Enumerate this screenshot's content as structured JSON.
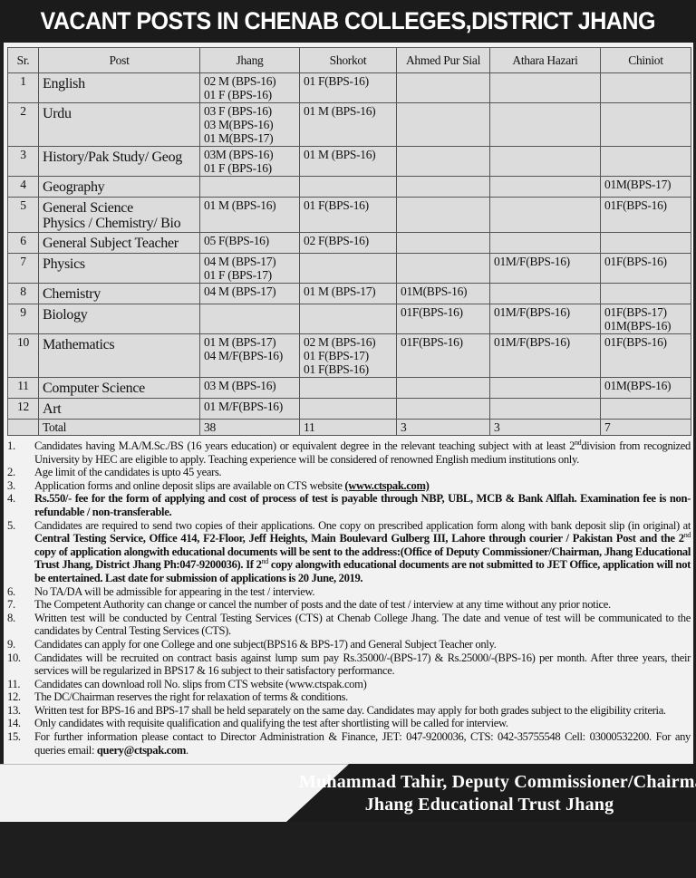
{
  "title": "VACANT POSTS IN CHENAB COLLEGES,DISTRICT JHANG",
  "table": {
    "headers": [
      "Sr.",
      "Post",
      "Jhang",
      "Shorkot",
      "Ahmed Pur Sial",
      "Athara Hazari",
      "Chiniot"
    ],
    "rows": [
      {
        "sr": "1",
        "post": "English",
        "jhang": "02 M (BPS-16)\n01 F (BPS-16)",
        "shorkot": "01 F(BPS-16)",
        "ahmed": "",
        "athara": "",
        "chiniot": ""
      },
      {
        "sr": "2",
        "post": "Urdu",
        "jhang": "03 F (BPS-16)\n03 M(BPS-16)\n01 M(BPS-17)",
        "shorkot": "01 M (BPS-16)",
        "ahmed": "",
        "athara": "",
        "chiniot": ""
      },
      {
        "sr": "3",
        "post": "History/Pak Study/ Geog",
        "jhang": "03M (BPS-16)\n01 F (BPS-16)",
        "shorkot": "01 M (BPS-16)",
        "ahmed": "",
        "athara": "",
        "chiniot": ""
      },
      {
        "sr": "4",
        "post": "Geography",
        "jhang": "",
        "shorkot": "",
        "ahmed": "",
        "athara": "",
        "chiniot": "01M(BPS-17)"
      },
      {
        "sr": "5",
        "post": "General Science\nPhysics / Chemistry/ Bio",
        "jhang": "01 M (BPS-16)",
        "shorkot": "01 F(BPS-16)",
        "ahmed": "",
        "athara": "",
        "chiniot": "01F(BPS-16)"
      },
      {
        "sr": "6",
        "post": "General Subject Teacher",
        "jhang": "05 F(BPS-16)",
        "shorkot": "02  F(BPS-16)",
        "ahmed": "",
        "athara": "",
        "chiniot": ""
      },
      {
        "sr": "7",
        "post": "Physics",
        "jhang": "04 M (BPS-17)\n01 F (BPS-17)",
        "shorkot": "",
        "ahmed": "",
        "athara": "01M/F(BPS-16)",
        "chiniot": "01F(BPS-16)"
      },
      {
        "sr": "8",
        "post": "Chemistry",
        "jhang": "04 M (BPS-17)",
        "shorkot": "01 M (BPS-17)",
        "ahmed": "01M(BPS-16)",
        "athara": "",
        "chiniot": ""
      },
      {
        "sr": "9",
        "post": "Biology",
        "jhang": "",
        "shorkot": "",
        "ahmed": "01F(BPS-16)",
        "athara": "01M/F(BPS-16)",
        "chiniot": "01F(BPS-17)\n01M(BPS-16)"
      },
      {
        "sr": "10",
        "post": "Mathematics",
        "jhang": "01 M (BPS-17)\n04 M/F(BPS-16)",
        "shorkot": "02 M (BPS-16)\n01 F(BPS-17)\n01 F(BPS-16)",
        "ahmed": "01F(BPS-16)",
        "athara": "01M/F(BPS-16)",
        "chiniot": "01F(BPS-16)"
      },
      {
        "sr": "11",
        "post": "Computer Science",
        "jhang": "03 M (BPS-16)",
        "shorkot": "",
        "ahmed": "",
        "athara": "",
        "chiniot": "01M(BPS-16)"
      },
      {
        "sr": "12",
        "post": "Art",
        "jhang": "01 M/F(BPS-16)",
        "shorkot": "",
        "ahmed": "",
        "athara": "",
        "chiniot": ""
      }
    ],
    "total": {
      "label": "Total",
      "jhang": "38",
      "shorkot": "11",
      "ahmed": "3",
      "athara": "3",
      "chiniot": "7"
    }
  },
  "notes": [
    {
      "n": "1.",
      "segs": [
        [
          "",
          "Candidates having  M.A/M.Sc./BS (16 years education) or equivalent degree in the relevant teaching subject with at least 2"
        ],
        [
          "sup",
          "nd"
        ],
        [
          "",
          "division from recognized University by HEC are eligible to apply. Teaching experience will be considered of renowned English medium institutions only."
        ]
      ]
    },
    {
      "n": "2.",
      "segs": [
        [
          "",
          "Age limit of the candidates is upto 45 years."
        ]
      ]
    },
    {
      "n": "3.",
      "segs": [
        [
          "",
          "Application forms and online deposit slips are available on CTS website "
        ],
        [
          "u",
          "(www.ctspak.com)"
        ]
      ]
    },
    {
      "n": "4.",
      "segs": [
        [
          "b",
          "Rs.550/- fee for the form of applying and cost of process of test is payable through NBP, UBL, MCB & Bank Alflah. Examination fee is non-refundable / non-transferable."
        ]
      ]
    },
    {
      "n": "5.",
      "segs": [
        [
          "",
          "Candidates are required to send two copies of their applications. One copy  on prescribed application form along with bank deposit slip (in original) at "
        ],
        [
          "b",
          "Central Testing Service, Office 414, F2-Floor, Jeff Heights, Main Boulevard Gulberg III, Lahore through courier / Pakistan Post and the 2"
        ],
        [
          "sup",
          "nd"
        ],
        [
          "b",
          "  copy of application alongwith educational documents will  be sent to the address:(Office of  Deputy Commissioner/Chairman, Jhang Educational Trust Jhang, District Jhang Ph:047-9200036). If 2"
        ],
        [
          "sup",
          "nd"
        ],
        [
          "b",
          " copy alongwith educational documents are not submitted to JET Office, application will not be entertained. Last date for submission of applications is 20 June, 2019."
        ]
      ]
    },
    {
      "n": "6.",
      "segs": [
        [
          "",
          "No TA/DA will be admissible for appearing in the test / interview."
        ]
      ]
    },
    {
      "n": "7.",
      "segs": [
        [
          "",
          "The Competent Authority can change or cancel the number of posts and the date of test / interview at any time without any prior notice."
        ]
      ]
    },
    {
      "n": "8.",
      "segs": [
        [
          "",
          "Written test will be conducted by Central Testing Services (CTS) at Chenab College Jhang.  The date and venue of test will be communicated to the candidates by Central Testing Services (CTS)."
        ]
      ]
    },
    {
      "n": "9.",
      "segs": [
        [
          "",
          "Candidates can apply for one College and one subject(BPS16 & BPS-17) and  General Subject Teacher only."
        ]
      ]
    },
    {
      "n": "10.",
      "segs": [
        [
          "",
          "Candidates will be recruited on contract basis against lump sum pay Rs.35000/-(BPS-17) & Rs.25000/-(BPS-16) per month. After three years, their services will be regularized in BPS17 & 16 subject to their satisfactory performance."
        ]
      ]
    },
    {
      "n": "11.",
      "segs": [
        [
          "",
          "Candidates can download roll No. slips from CTS website (www.ctspak.com)"
        ]
      ]
    },
    {
      "n": "12.",
      "segs": [
        [
          "",
          "The DC/Chairman reserves the right for relaxation of terms & conditions."
        ]
      ]
    },
    {
      "n": "13.",
      "segs": [
        [
          "",
          "Written test for BPS-16 and BPS-17 shall be held separately on the same day. Candidates may apply for both grades subject to the eligibility criteria."
        ]
      ]
    },
    {
      "n": "14.",
      "segs": [
        [
          "",
          "Only candidates with requisite qualification and qualifying the test after shortlisting will be called for interview."
        ]
      ]
    },
    {
      "n": "15.",
      "segs": [
        [
          "",
          "For further information please contact to Director Administration & Finance, JET: 047-9200036,  CTS: 042-35755548  Cell: 03000532200. For any queries email: "
        ],
        [
          "b",
          "query@ctspak.com"
        ],
        [
          "",
          "."
        ]
      ]
    }
  ],
  "signature": {
    "line1": "Muhammad Tahir,  Deputy Commissioner/Chairman,",
    "line2": "Jhang Educational Trust Jhang"
  }
}
